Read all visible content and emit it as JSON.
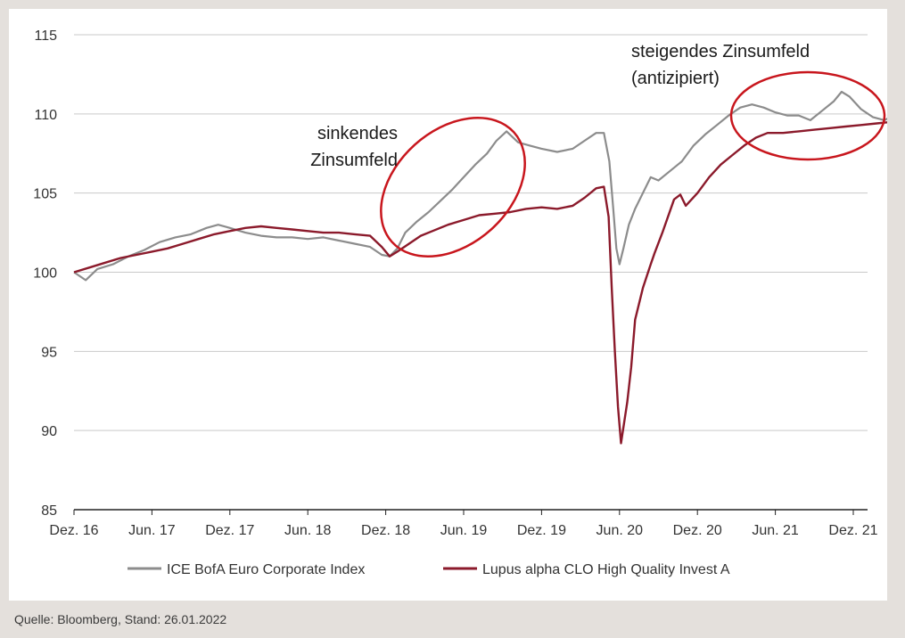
{
  "chart_data": {
    "type": "line",
    "ylim": [
      85,
      115
    ],
    "yticks": [
      85,
      90,
      95,
      100,
      105,
      110,
      115
    ],
    "grid": true,
    "xticks": [
      "Dez. 16",
      "Jun. 17",
      "Dez. 17",
      "Jun. 18",
      "Dez. 18",
      "Jun. 19",
      "Dez. 19",
      "Jun. 20",
      "Dez. 20",
      "Jun. 21",
      "Dez. 21"
    ],
    "legend_position": "bottom",
    "series": [
      {
        "name": "ICE BofA Euro Corporate Index",
        "color": "#8c8c8c",
        "points": [
          [
            0.0,
            100.0
          ],
          [
            0.15,
            99.5
          ],
          [
            0.3,
            100.2
          ],
          [
            0.5,
            100.5
          ],
          [
            0.7,
            101.0
          ],
          [
            0.9,
            101.4
          ],
          [
            1.1,
            101.9
          ],
          [
            1.3,
            102.2
          ],
          [
            1.5,
            102.4
          ],
          [
            1.7,
            102.8
          ],
          [
            1.85,
            103.0
          ],
          [
            2.0,
            102.8
          ],
          [
            2.2,
            102.5
          ],
          [
            2.4,
            102.3
          ],
          [
            2.6,
            102.2
          ],
          [
            2.8,
            102.2
          ],
          [
            3.0,
            102.1
          ],
          [
            3.2,
            102.2
          ],
          [
            3.4,
            102.0
          ],
          [
            3.6,
            101.8
          ],
          [
            3.8,
            101.6
          ],
          [
            3.95,
            101.1
          ],
          [
            4.05,
            101.0
          ],
          [
            4.15,
            101.5
          ],
          [
            4.25,
            102.5
          ],
          [
            4.4,
            103.2
          ],
          [
            4.55,
            103.8
          ],
          [
            4.7,
            104.5
          ],
          [
            4.85,
            105.2
          ],
          [
            5.0,
            106.0
          ],
          [
            5.15,
            106.8
          ],
          [
            5.3,
            107.5
          ],
          [
            5.42,
            108.3
          ],
          [
            5.55,
            108.9
          ],
          [
            5.7,
            108.2
          ],
          [
            5.85,
            108.0
          ],
          [
            6.0,
            107.8
          ],
          [
            6.2,
            107.6
          ],
          [
            6.4,
            107.8
          ],
          [
            6.55,
            108.3
          ],
          [
            6.7,
            108.8
          ],
          [
            6.8,
            108.8
          ],
          [
            6.87,
            107.0
          ],
          [
            6.92,
            104.0
          ],
          [
            6.96,
            101.5
          ],
          [
            7.0,
            100.5
          ],
          [
            7.05,
            101.5
          ],
          [
            7.12,
            103.0
          ],
          [
            7.2,
            104.0
          ],
          [
            7.3,
            105.0
          ],
          [
            7.4,
            106.0
          ],
          [
            7.5,
            105.8
          ],
          [
            7.65,
            106.4
          ],
          [
            7.8,
            107.0
          ],
          [
            7.95,
            108.0
          ],
          [
            8.1,
            108.7
          ],
          [
            8.25,
            109.3
          ],
          [
            8.4,
            109.9
          ],
          [
            8.55,
            110.4
          ],
          [
            8.7,
            110.6
          ],
          [
            8.85,
            110.4
          ],
          [
            9.0,
            110.1
          ],
          [
            9.15,
            109.9
          ],
          [
            9.3,
            109.9
          ],
          [
            9.45,
            109.6
          ],
          [
            9.6,
            110.2
          ],
          [
            9.75,
            110.8
          ],
          [
            9.85,
            111.4
          ],
          [
            9.95,
            111.1
          ],
          [
            10.1,
            110.3
          ],
          [
            10.25,
            109.8
          ],
          [
            10.4,
            109.6
          ],
          [
            10.55,
            110.0
          ],
          [
            10.7,
            109.9
          ],
          [
            10.82,
            109.6
          ],
          [
            10.9,
            109.2
          ],
          [
            10.97,
            108.6
          ],
          [
            11.02,
            108.8
          ]
        ]
      },
      {
        "name": "Lupus alpha CLO High Quality Invest A",
        "color": "#8b1a2b",
        "points": [
          [
            0.0,
            100.0
          ],
          [
            0.2,
            100.3
          ],
          [
            0.4,
            100.6
          ],
          [
            0.6,
            100.9
          ],
          [
            0.8,
            101.1
          ],
          [
            1.0,
            101.3
          ],
          [
            1.2,
            101.5
          ],
          [
            1.4,
            101.8
          ],
          [
            1.6,
            102.1
          ],
          [
            1.8,
            102.4
          ],
          [
            2.0,
            102.6
          ],
          [
            2.2,
            102.8
          ],
          [
            2.4,
            102.9
          ],
          [
            2.6,
            102.8
          ],
          [
            2.8,
            102.7
          ],
          [
            3.0,
            102.6
          ],
          [
            3.2,
            102.5
          ],
          [
            3.4,
            102.5
          ],
          [
            3.6,
            102.4
          ],
          [
            3.8,
            102.3
          ],
          [
            3.95,
            101.6
          ],
          [
            4.05,
            101.0
          ],
          [
            4.15,
            101.3
          ],
          [
            4.3,
            101.8
          ],
          [
            4.45,
            102.3
          ],
          [
            4.6,
            102.6
          ],
          [
            4.8,
            103.0
          ],
          [
            5.0,
            103.3
          ],
          [
            5.2,
            103.6
          ],
          [
            5.4,
            103.7
          ],
          [
            5.6,
            103.8
          ],
          [
            5.8,
            104.0
          ],
          [
            6.0,
            104.1
          ],
          [
            6.2,
            104.0
          ],
          [
            6.4,
            104.2
          ],
          [
            6.55,
            104.7
          ],
          [
            6.7,
            105.3
          ],
          [
            6.8,
            105.4
          ],
          [
            6.86,
            103.5
          ],
          [
            6.9,
            99.0
          ],
          [
            6.94,
            95.0
          ],
          [
            6.98,
            91.5
          ],
          [
            7.02,
            89.2
          ],
          [
            7.06,
            90.5
          ],
          [
            7.1,
            91.8
          ],
          [
            7.15,
            94.0
          ],
          [
            7.2,
            97.0
          ],
          [
            7.3,
            99.0
          ],
          [
            7.4,
            100.5
          ],
          [
            7.45,
            101.2
          ],
          [
            7.55,
            102.5
          ],
          [
            7.7,
            104.6
          ],
          [
            7.78,
            104.9
          ],
          [
            7.85,
            104.2
          ],
          [
            8.0,
            105.0
          ],
          [
            8.15,
            106.0
          ],
          [
            8.3,
            106.8
          ],
          [
            8.45,
            107.4
          ],
          [
            8.6,
            108.0
          ],
          [
            8.75,
            108.5
          ],
          [
            8.9,
            108.8
          ],
          [
            9.1,
            108.8
          ],
          [
            9.3,
            108.9
          ],
          [
            9.5,
            109.0
          ],
          [
            9.7,
            109.1
          ],
          [
            9.9,
            109.2
          ],
          [
            10.1,
            109.3
          ],
          [
            10.3,
            109.4
          ],
          [
            10.5,
            109.5
          ],
          [
            10.7,
            109.6
          ],
          [
            10.85,
            109.8
          ],
          [
            11.02,
            109.7
          ]
        ]
      }
    ],
    "annotations": [
      {
        "lines": [
          "sinkendes",
          "Zinsumfeld"
        ],
        "color": "#1a1a1a"
      },
      {
        "lines": [
          "steigendes Zinsumfeld",
          "(antizipiert)"
        ],
        "color": "#1a1a1a"
      }
    ],
    "highlight_color": "#c8161d"
  },
  "source_text": "Quelle: Bloomberg, Stand: 26.01.2022"
}
